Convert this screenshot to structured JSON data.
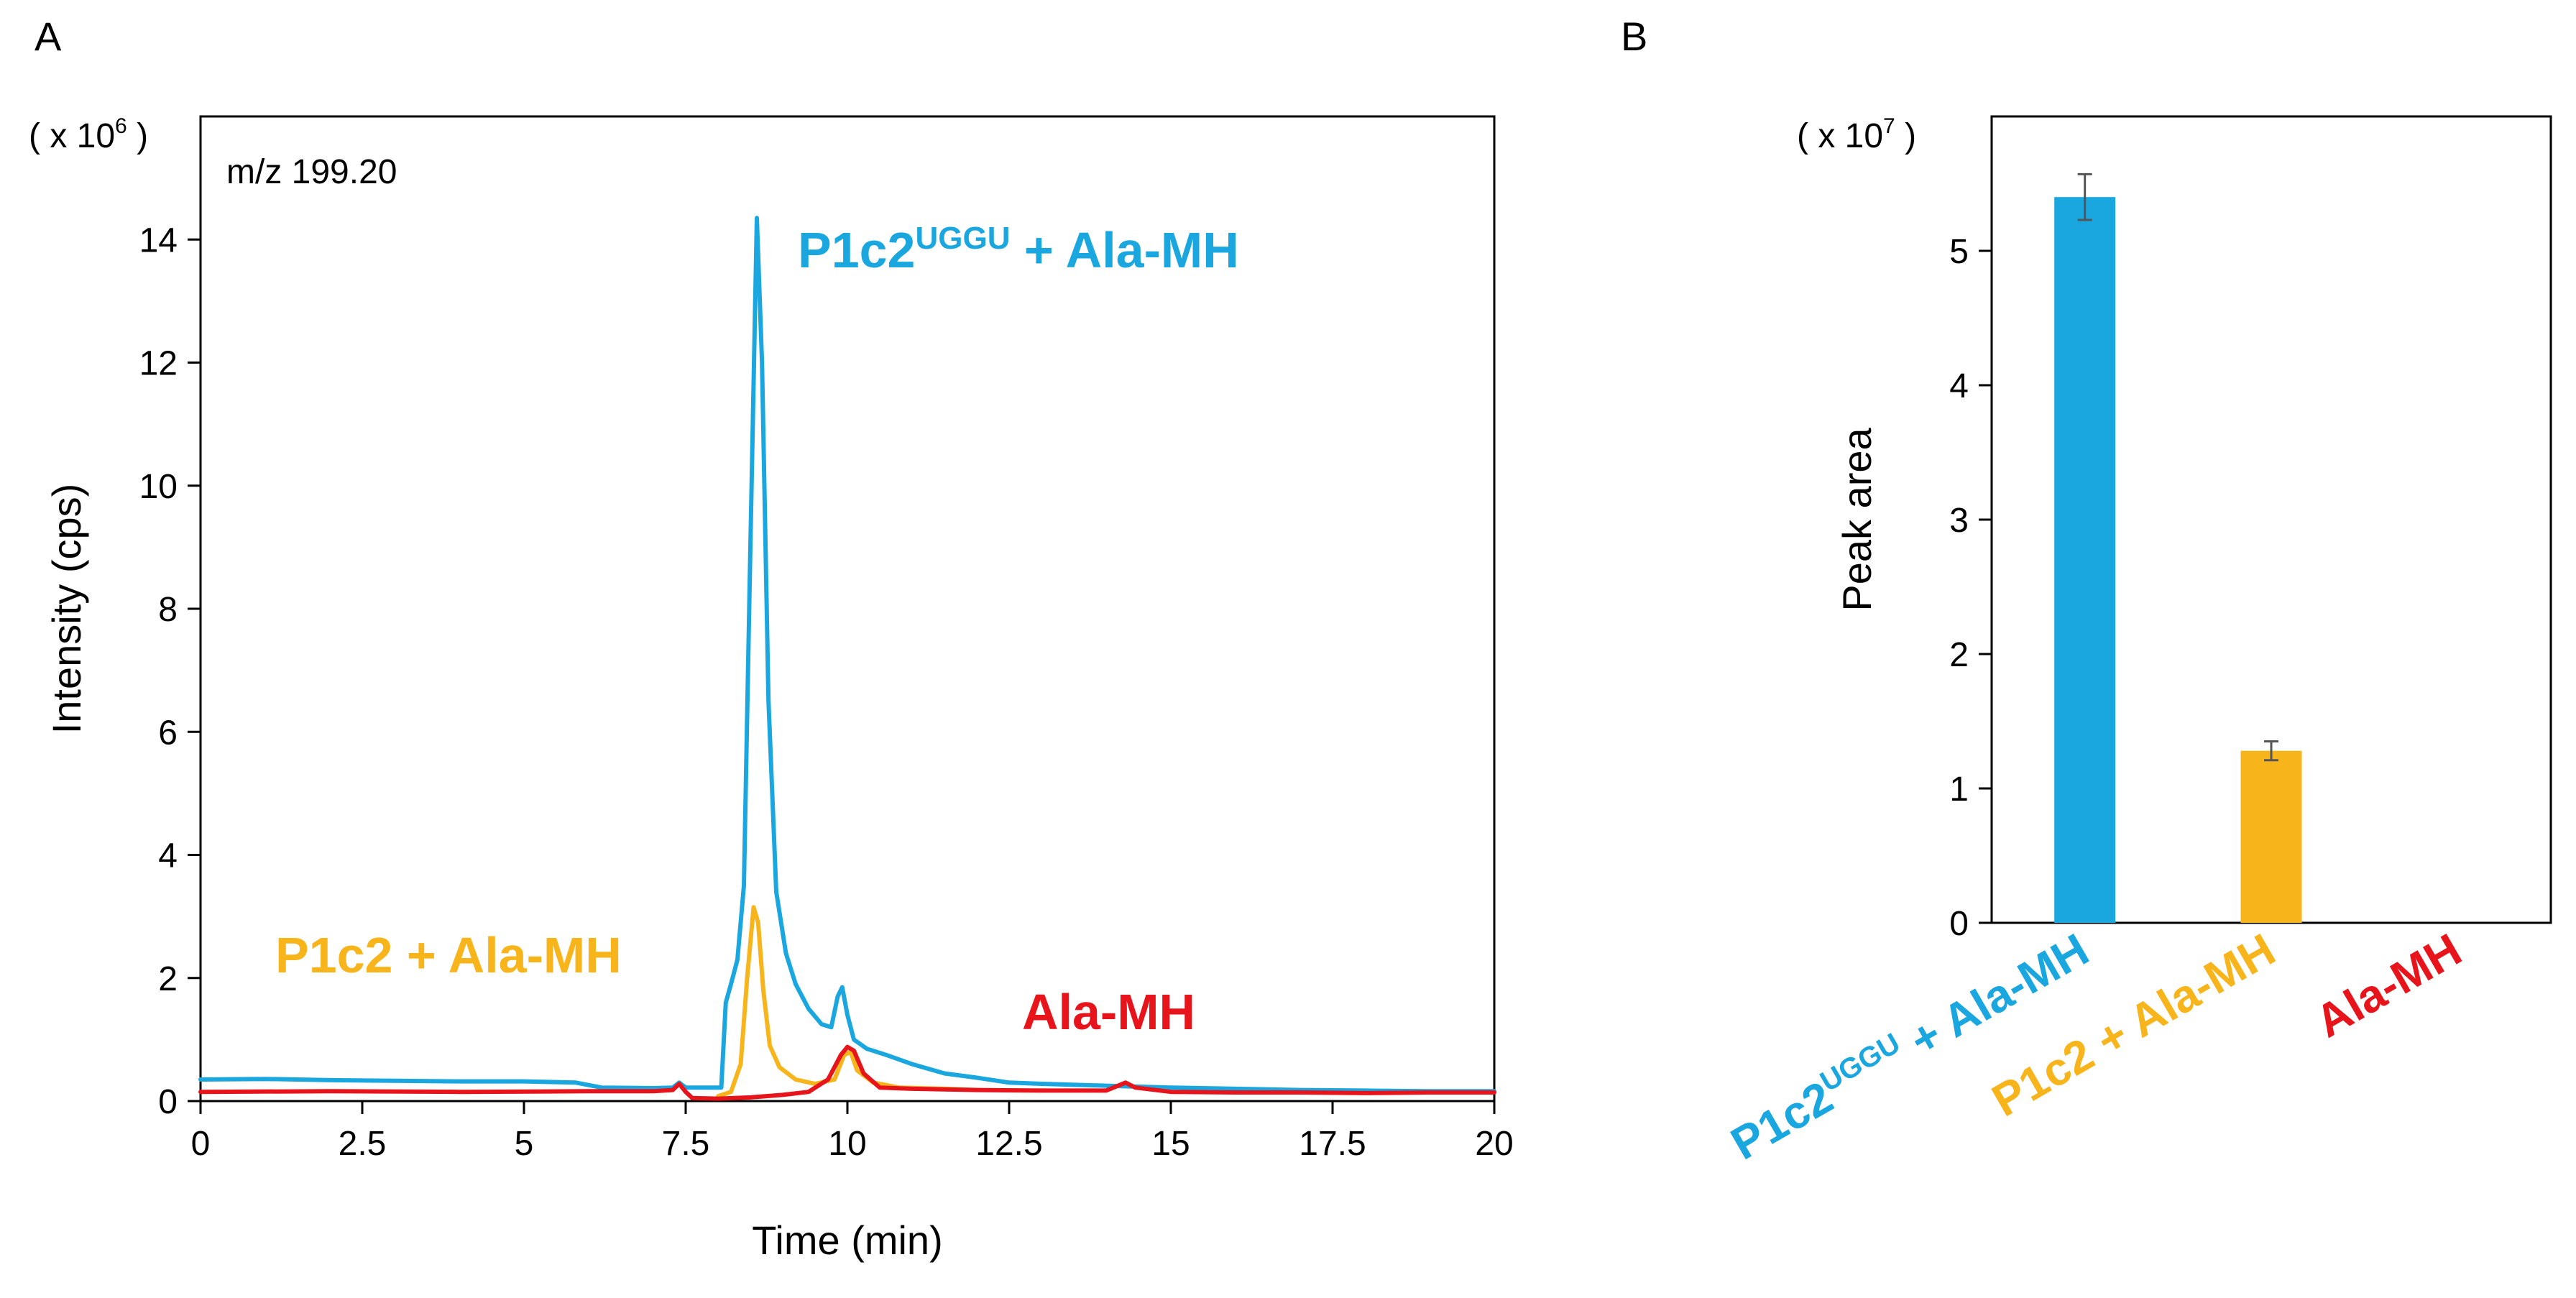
{
  "panels": {
    "a_label": "A",
    "b_label": "B"
  },
  "colors": {
    "blue": "#1aa7e0",
    "orange": "#f7b51b",
    "red": "#e8141c",
    "axis": "#000000",
    "errorbar": "#555555"
  },
  "chart_data": [
    {
      "type": "line",
      "panel": "A",
      "annotation": "m/z 199.20",
      "scale_prefix": "( x 10",
      "scale_exponent": "6",
      "scale_suffix": " )",
      "xlabel": "Time (min)",
      "ylabel": "Intensity (cps)",
      "xlim": [
        0,
        20
      ],
      "ylim": [
        0,
        16
      ],
      "xticks": [
        0,
        2.5,
        5,
        7.5,
        10,
        12.5,
        15,
        17.5,
        20
      ],
      "xtick_labels": [
        "0",
        "2.5",
        "5",
        "7.5",
        "10",
        "12.5",
        "15",
        "17.5",
        "20"
      ],
      "yticks": [
        0,
        2,
        4,
        6,
        8,
        10,
        12,
        14
      ],
      "ytick_labels": [
        "0",
        "2",
        "4",
        "6",
        "8",
        "10",
        "12",
        "14"
      ],
      "grid": false,
      "legend": "inline labels",
      "series": [
        {
          "label_main": "P1c2",
          "label_sup": "UGGU",
          "label_tail": " + Ala-MH",
          "color": "#1aa7e0",
          "points": [
            [
              0,
              0.35
            ],
            [
              1,
              0.36
            ],
            [
              2,
              0.34
            ],
            [
              3,
              0.33
            ],
            [
              4,
              0.32
            ],
            [
              5,
              0.32
            ],
            [
              5.8,
              0.3
            ],
            [
              6.2,
              0.22
            ],
            [
              7,
              0.21
            ],
            [
              7.3,
              0.22
            ],
            [
              7.4,
              0.3
            ],
            [
              7.5,
              0.22
            ],
            [
              8.05,
              0.22
            ],
            [
              8.12,
              1.6
            ],
            [
              8.2,
              1.9
            ],
            [
              8.3,
              2.3
            ],
            [
              8.4,
              3.5
            ],
            [
              8.5,
              9.0
            ],
            [
              8.6,
              14.35
            ],
            [
              8.68,
              12.0
            ],
            [
              8.78,
              6.5
            ],
            [
              8.9,
              3.4
            ],
            [
              9.05,
              2.4
            ],
            [
              9.2,
              1.9
            ],
            [
              9.4,
              1.5
            ],
            [
              9.6,
              1.25
            ],
            [
              9.75,
              1.2
            ],
            [
              9.85,
              1.7
            ],
            [
              9.92,
              1.85
            ],
            [
              10.0,
              1.4
            ],
            [
              10.1,
              1.0
            ],
            [
              10.3,
              0.85
            ],
            [
              10.6,
              0.75
            ],
            [
              11,
              0.6
            ],
            [
              11.5,
              0.45
            ],
            [
              12,
              0.38
            ],
            [
              12.5,
              0.3
            ],
            [
              13,
              0.28
            ],
            [
              14,
              0.25
            ],
            [
              15,
              0.22
            ],
            [
              16,
              0.2
            ],
            [
              17,
              0.18
            ],
            [
              18,
              0.17
            ],
            [
              19,
              0.16
            ],
            [
              20,
              0.16
            ]
          ]
        },
        {
          "label_main": "P1c2 + Ala-MH",
          "label_sup": "",
          "label_tail": "",
          "color": "#f7b51b",
          "points": [
            [
              8.0,
              0.08
            ],
            [
              8.2,
              0.15
            ],
            [
              8.35,
              0.6
            ],
            [
              8.45,
              2.0
            ],
            [
              8.55,
              3.15
            ],
            [
              8.62,
              2.9
            ],
            [
              8.7,
              1.8
            ],
            [
              8.8,
              0.9
            ],
            [
              8.95,
              0.55
            ],
            [
              9.2,
              0.35
            ],
            [
              9.5,
              0.28
            ],
            [
              9.8,
              0.35
            ],
            [
              9.95,
              0.75
            ],
            [
              10.05,
              0.8
            ],
            [
              10.15,
              0.5
            ],
            [
              10.4,
              0.3
            ],
            [
              10.8,
              0.22
            ],
            [
              11.5,
              0.2
            ],
            [
              12,
              0.18
            ]
          ]
        },
        {
          "label_main": "Ala-MH",
          "label_sup": "",
          "label_tail": "",
          "color": "#e8141c",
          "points": [
            [
              0,
              0.15
            ],
            [
              2,
              0.16
            ],
            [
              4,
              0.15
            ],
            [
              6,
              0.16
            ],
            [
              7,
              0.16
            ],
            [
              7.3,
              0.18
            ],
            [
              7.4,
              0.28
            ],
            [
              7.5,
              0.15
            ],
            [
              7.6,
              0.05
            ],
            [
              8.0,
              0.04
            ],
            [
              8.5,
              0.06
            ],
            [
              9.0,
              0.1
            ],
            [
              9.4,
              0.15
            ],
            [
              9.7,
              0.35
            ],
            [
              9.9,
              0.75
            ],
            [
              10.0,
              0.88
            ],
            [
              10.1,
              0.82
            ],
            [
              10.25,
              0.45
            ],
            [
              10.5,
              0.22
            ],
            [
              11,
              0.2
            ],
            [
              12,
              0.18
            ],
            [
              13,
              0.17
            ],
            [
              14,
              0.17
            ],
            [
              14.3,
              0.3
            ],
            [
              14.45,
              0.22
            ],
            [
              15,
              0.15
            ],
            [
              16,
              0.14
            ],
            [
              17,
              0.14
            ],
            [
              18,
              0.13
            ],
            [
              19,
              0.14
            ],
            [
              20,
              0.14
            ]
          ]
        }
      ]
    },
    {
      "type": "bar",
      "panel": "B",
      "scale_prefix": "( x 10",
      "scale_exponent": "7",
      "scale_suffix": " )",
      "ylabel": "Peak area",
      "ylim": [
        0,
        6
      ],
      "yticks": [
        0,
        1,
        2,
        3,
        4,
        5
      ],
      "ytick_labels": [
        "0",
        "1",
        "2",
        "3",
        "4",
        "5"
      ],
      "grid": false,
      "categories": [
        {
          "main": "P1c2",
          "sup": "UGGU",
          "tail": " + Ala-MH",
          "color": "#1aa7e0"
        },
        {
          "main": "P1c2 + Ala-MH",
          "sup": "",
          "tail": "",
          "color": "#f7b51b"
        },
        {
          "main": "Ala-MH",
          "sup": "",
          "tail": "",
          "color": "#e8141c"
        }
      ],
      "values": [
        5.4,
        1.28,
        0
      ],
      "errors": [
        0.17,
        0.07,
        0
      ]
    }
  ]
}
